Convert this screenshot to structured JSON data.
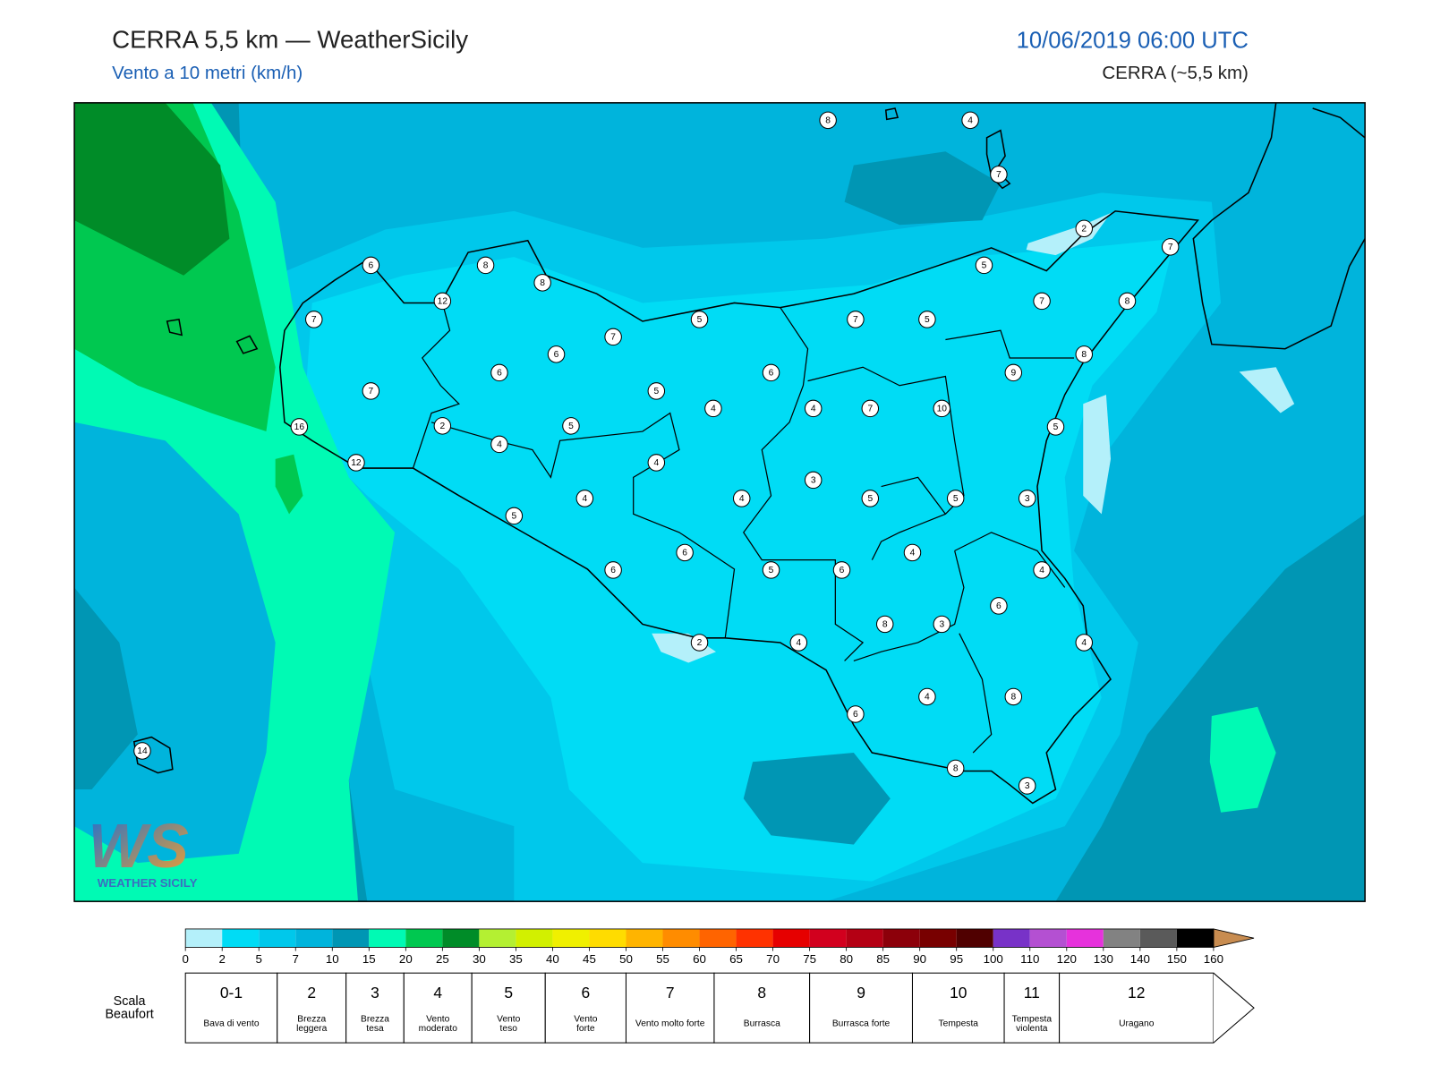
{
  "header": {
    "title": "CERRA 5,5 km — WeatherSicily",
    "subtitle": "Vento a 10 metri (km/h)",
    "datetime": "10/06/2019 06:00 UTC",
    "model": "CERRA (~5,5 km)"
  },
  "logo": {
    "mark": "WS",
    "name": "WEATHER SICILY"
  },
  "map": {
    "stations": [
      8,
      4,
      7,
      2,
      7,
      6,
      8,
      8,
      5,
      12,
      7,
      8,
      7,
      5,
      7,
      5,
      7,
      6,
      8,
      6,
      6,
      9,
      7,
      5,
      4,
      4,
      7,
      10,
      2,
      5,
      5,
      16,
      4,
      4,
      12,
      3,
      4,
      4,
      5,
      5,
      3,
      5,
      6,
      4,
      6,
      5,
      6,
      4,
      6,
      8,
      3,
      2,
      4,
      4,
      4,
      8,
      6,
      14,
      8,
      3
    ]
  },
  "colorbar": {
    "ticks": [
      0,
      2,
      5,
      7,
      10,
      15,
      20,
      25,
      30,
      35,
      40,
      45,
      50,
      55,
      60,
      65,
      70,
      75,
      80,
      85,
      90,
      95,
      100,
      110,
      120,
      130,
      140,
      150,
      160
    ],
    "colors": [
      "#b4f0fa",
      "#00dcf5",
      "#00c8eb",
      "#00b4dc",
      "#0096b4",
      "#00fab4",
      "#00c850",
      "#008c28",
      "#b4f032",
      "#d2f000",
      "#f0f000",
      "#ffdc00",
      "#ffb400",
      "#ff8c00",
      "#ff6400",
      "#ff3200",
      "#e60000",
      "#d2001e",
      "#b40014",
      "#8c000a",
      "#780000",
      "#500000",
      "#7832c8",
      "#b450d2",
      "#e632dc",
      "#828282",
      "#5a5a5a",
      "#000000",
      "#8c5032",
      "#c88c50"
    ]
  },
  "beaufort": {
    "label": "Scala Beaufort",
    "classes": [
      {
        "number": "0-1",
        "description": "Bava di vento"
      },
      {
        "number": "2",
        "description": "Brezza leggera"
      },
      {
        "number": "3",
        "description": "Brezza tesa"
      },
      {
        "number": "4",
        "description": "Vento moderato"
      },
      {
        "number": "5",
        "description": "Vento teso"
      },
      {
        "number": "6",
        "description": "Vento forte"
      },
      {
        "number": "7",
        "description": "Vento molto forte"
      },
      {
        "number": "8",
        "description": "Burrasca"
      },
      {
        "number": "9",
        "description": "Burrasca forte"
      },
      {
        "number": "10",
        "description": "Tempesta"
      },
      {
        "number": "11",
        "description": "Tempesta violenta"
      },
      {
        "number": "12",
        "description": "Uragano"
      }
    ]
  }
}
